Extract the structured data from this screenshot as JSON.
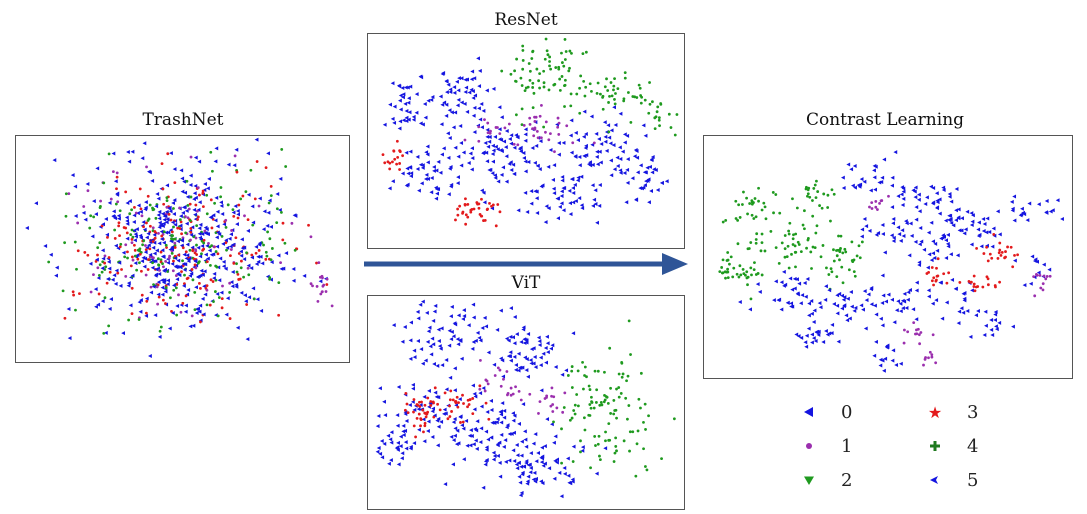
{
  "panels": [
    {
      "id": "trashnet",
      "title": "TrashNet"
    },
    {
      "id": "resnet",
      "title": "ResNet"
    },
    {
      "id": "vit",
      "title": "ViT"
    },
    {
      "id": "contrast",
      "title": "Contrast Learning"
    }
  ],
  "legend": [
    {
      "label": "0",
      "color": "#1414e0",
      "marker": "left-triangle"
    },
    {
      "label": "1",
      "color": "#9b2fae",
      "marker": "dot"
    },
    {
      "label": "2",
      "color": "#1f9a1f",
      "marker": "down-triangle"
    },
    {
      "label": "3",
      "color": "#e31a1c",
      "marker": "star"
    },
    {
      "label": "4",
      "color": "#1f7a1f",
      "marker": "plus"
    },
    {
      "label": "5",
      "color": "#1414e0",
      "marker": "left-arrow"
    }
  ],
  "colors": {
    "arrow": "#2f5597",
    "class0": "#1414e0",
    "class1": "#9b2fae",
    "class2": "#1f9a1f",
    "class3": "#e31a1c"
  }
}
